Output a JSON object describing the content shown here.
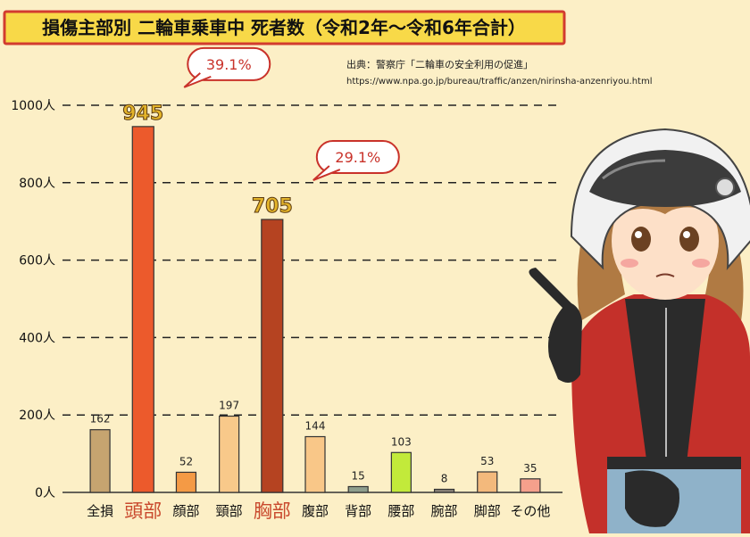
{
  "source": {
    "line1": "出典：警察庁「二輪車の安全利用の促進」",
    "line2": "https://www.npa.go.jp/bureau/traffic/anzen/nirinsha-anzenriyou.html"
  },
  "colors": {
    "background": "#fcefc6",
    "title_bg": "#f8d948",
    "title_border": "#d23b2f",
    "highlight_text": "#c9492d",
    "gridline": "#222222",
    "callout_border": "#c9322a",
    "callout_text": "#c9322a"
  },
  "chart_data": {
    "type": "bar",
    "title": "損傷主部別 二輪車乗車中 死者数（令和2年〜令和6年合計）",
    "ylim": [
      0,
      1000
    ],
    "yticks": [
      {
        "value": 0,
        "label": "0人"
      },
      {
        "value": 200,
        "label": "200人"
      },
      {
        "value": 400,
        "label": "400人"
      },
      {
        "value": 600,
        "label": "600人"
      },
      {
        "value": 800,
        "label": "800人"
      },
      {
        "value": 1000,
        "label": "1000人"
      }
    ],
    "grid": true,
    "categories": [
      "全損",
      "頭部",
      "顔部",
      "頸部",
      "胸部",
      "腹部",
      "背部",
      "腰部",
      "腕部",
      "脚部",
      "その他"
    ],
    "values": [
      162,
      945,
      52,
      197,
      705,
      144,
      15,
      103,
      8,
      53,
      35
    ],
    "value_labels": [
      "162",
      "945",
      "52",
      "197",
      "705",
      "144",
      "15",
      "103",
      "8",
      "53",
      "35"
    ],
    "bar_colors": [
      "#c6a470",
      "#ec5a2c",
      "#f49a45",
      "#f8c98a",
      "#b54321",
      "#f9c788",
      "#8e9e8d",
      "#c2ea3a",
      "#8c847a",
      "#f3b97c",
      "#f5a08c"
    ],
    "highlight": [
      1,
      4
    ],
    "annotations": [
      {
        "category_index": 1,
        "text": "39.1%"
      },
      {
        "category_index": 4,
        "text": "29.1%"
      }
    ]
  }
}
